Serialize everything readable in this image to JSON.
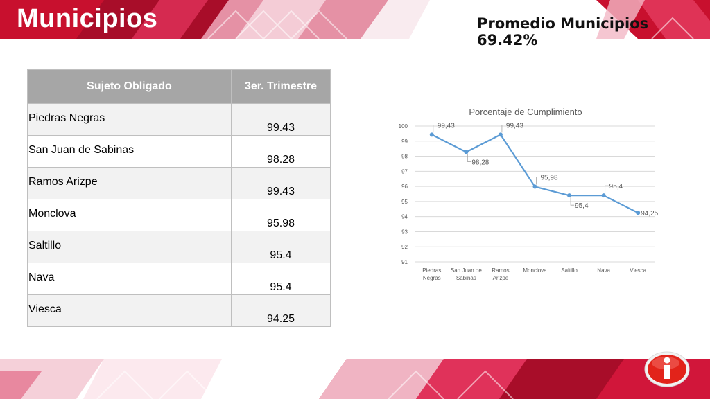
{
  "header": {
    "title": "Municipios",
    "average": "Promedio Municipios 69.42%"
  },
  "table": {
    "columns": [
      "Sujeto Obligado",
      "3er. Trimestre"
    ],
    "rows": [
      {
        "name": "Piedras Negras",
        "value": "99.43"
      },
      {
        "name": "San Juan de Sabinas",
        "value": "98.28"
      },
      {
        "name": "Ramos Arizpe",
        "value": "99.43"
      },
      {
        "name": "Monclova",
        "value": "95.98"
      },
      {
        "name": "Saltillo",
        "value": "95.4"
      },
      {
        "name": "Nava",
        "value": "95.4"
      },
      {
        "name": "Viesca",
        "value": "94.25"
      }
    ]
  },
  "logo": {
    "name": "info-i-icon",
    "color": "#e2231a"
  },
  "colors": {
    "accent": "#c8102e",
    "line": "#5b9bd5",
    "header_gray": "#a6a6a6"
  },
  "chart_data": {
    "type": "line",
    "title": "Porcentaje de Cumplimiento",
    "categories": [
      "Piedras Negras",
      "San Juan de Sabinas",
      "Ramos Arizpe",
      "Monclova",
      "Saltillo",
      "Nava",
      "Viesca"
    ],
    "category_lines": [
      [
        "Piedras",
        "Negras"
      ],
      [
        "San Juan de",
        "Sabinas"
      ],
      [
        "Ramos",
        "Arizpe"
      ],
      [
        "Monclova"
      ],
      [
        "Saltillo"
      ],
      [
        "Nava"
      ],
      [
        "Viesca"
      ]
    ],
    "values": [
      99.43,
      98.28,
      99.43,
      95.98,
      95.4,
      95.4,
      94.25
    ],
    "data_labels": [
      "99,43",
      "98,28",
      "99,43",
      "95,98",
      "95,4",
      "95,4",
      "94,25"
    ],
    "ylim": [
      91,
      100
    ],
    "yticks": [
      91,
      92,
      93,
      94,
      95,
      96,
      97,
      98,
      99,
      100
    ],
    "grid": true,
    "xlabel": "",
    "ylabel": ""
  }
}
